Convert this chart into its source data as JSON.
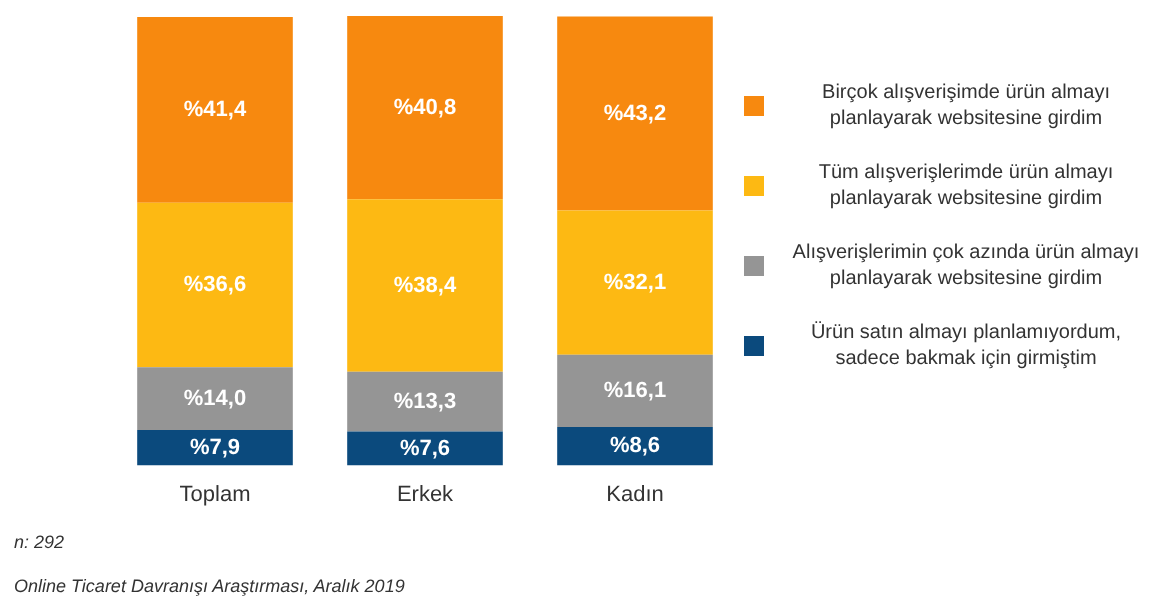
{
  "chart_data": {
    "type": "bar",
    "stacked": true,
    "categories": [
      "Toplam",
      "Erkek",
      "Kadın"
    ],
    "series": [
      {
        "name": "Ürün satın almayı planlamıyordum, sadece bakmak için girmiştim",
        "color": "#0b4a7d",
        "values": [
          7.9,
          7.6,
          8.6
        ],
        "value_labels": [
          "%7,9",
          "%7,6",
          "%8,6"
        ]
      },
      {
        "name": "Alışverişlerimin çok azında ürün almayı planlayarak websitesine girdim",
        "color": "#959595",
        "values": [
          14.0,
          13.3,
          16.1
        ],
        "value_labels": [
          "%14,0",
          "%13,3",
          "%16,1"
        ]
      },
      {
        "name": "Tüm alışverişlerimde ürün almayı planlayarak websitesine girdim",
        "color": "#fdb913",
        "values": [
          36.6,
          38.4,
          32.1
        ],
        "value_labels": [
          "%36,6",
          "%38,4",
          "%32,1"
        ]
      },
      {
        "name": "Birçok alışverişimde ürün almayı planlayarak websitesine girdim",
        "color": "#f7890f",
        "values": [
          41.4,
          40.8,
          43.2
        ],
        "value_labels": [
          "%41,4",
          "%40,8",
          "%43,2"
        ]
      }
    ],
    "legend": "right",
    "grid": false,
    "annotations": [
      "n: 292",
      "Online Ticaret Davranışı Araştırması, Aralık 2019"
    ]
  }
}
